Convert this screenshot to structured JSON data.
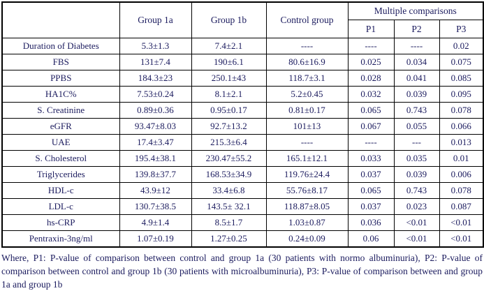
{
  "table": {
    "headers": {
      "row_label": "",
      "group1a": "Group 1a",
      "group1b": "Group 1b",
      "control": "Control group",
      "multiple_comparisons": "Multiple comparisons",
      "p1": "P1",
      "p2": "P2",
      "p3": "P3"
    },
    "rows": [
      {
        "label": "Duration of Diabetes",
        "group1a": "5.3±1.3",
        "group1b": "7.4±2.1",
        "control": "----",
        "p1": "----",
        "p2": "----",
        "p3": "0.02"
      },
      {
        "label": "FBS",
        "group1a": "131±7.4",
        "group1b": "190±6.1",
        "control": "80.6±16.9",
        "p1": "0.025",
        "p2": "0.034",
        "p3": "0.075"
      },
      {
        "label": "PPBS",
        "group1a": "184.3±23",
        "group1b": "250.1±43",
        "control": "118.7±3.1",
        "p1": "0.028",
        "p2": "0.041",
        "p3": "0.085"
      },
      {
        "label": "HA1C%",
        "group1a": "7.53±0.24",
        "group1b": "8.1±2.1",
        "control": "5.2±0.45",
        "p1": "0.032",
        "p2": "0.039",
        "p3": "0.095"
      },
      {
        "label": "S. Creatinine",
        "group1a": "0.89±0.36",
        "group1b": "0.95±0.17",
        "control": "0.81±0.17",
        "p1": "0.065",
        "p2": "0.743",
        "p3": "0.078"
      },
      {
        "label": "eGFR",
        "group1a": "93.47±8.03",
        "group1b": "92.7±13.2",
        "control": "101±13",
        "p1": "0.067",
        "p2": "0.055",
        "p3": "0.066"
      },
      {
        "label": "UAE",
        "group1a": "17.4±3.47",
        "group1b": "215.3±6.4",
        "control": "----",
        "p1": "----",
        "p2": "---",
        "p3": "0.013"
      },
      {
        "label": "S. Cholesterol",
        "group1a": "195.4±38.1",
        "group1b": "230.47±55.2",
        "control": "165.1±12.1",
        "p1": "0.033",
        "p2": "0.035",
        "p3": "0.01"
      },
      {
        "label": "Triglycerides",
        "group1a": "139.8±37.7",
        "group1b": "168.53±34.9",
        "control": "119.76±24.4",
        "p1": "0.037",
        "p2": "0.039",
        "p3": "0.006"
      },
      {
        "label": "HDL-c",
        "group1a": "43.9±12",
        "group1b": "33.4±6.8",
        "control": "55.76±8.17",
        "p1": "0.065",
        "p2": "0.743",
        "p3": "0.078"
      },
      {
        "label": "LDL-c",
        "group1a": "130.7±38.5",
        "group1b": "143.5± 32.1",
        "control": "118.87±8.05",
        "p1": "0.037",
        "p2": "0.023",
        "p3": "0.087"
      },
      {
        "label": "hs-CRP",
        "group1a": "4.9±1.4",
        "group1b": "8.5±1.7",
        "control": "1.03±0.87",
        "p1": "0.036",
        "p2": "<0.01",
        "p3": "<0.01"
      },
      {
        "label": "Pentraxin-3ng/ml",
        "group1a": "1.07±0.19",
        "group1b": "1.27±0.25",
        "control": "0.24±0.09",
        "p1": "0.06",
        "p2": "<0.01",
        "p3": "<0.01"
      }
    ]
  },
  "footnote": "Where, P1: P-value of comparison between control and group 1a (30 patients with normo albuminuria), P2: P-value of comparison between control and group 1b (30 patients with microalbuminuria), P3: P-value of comparison between and group 1a and group 1b",
  "colors": {
    "text": "#1b1b5e",
    "border": "#000000",
    "background": "#ffffff"
  }
}
